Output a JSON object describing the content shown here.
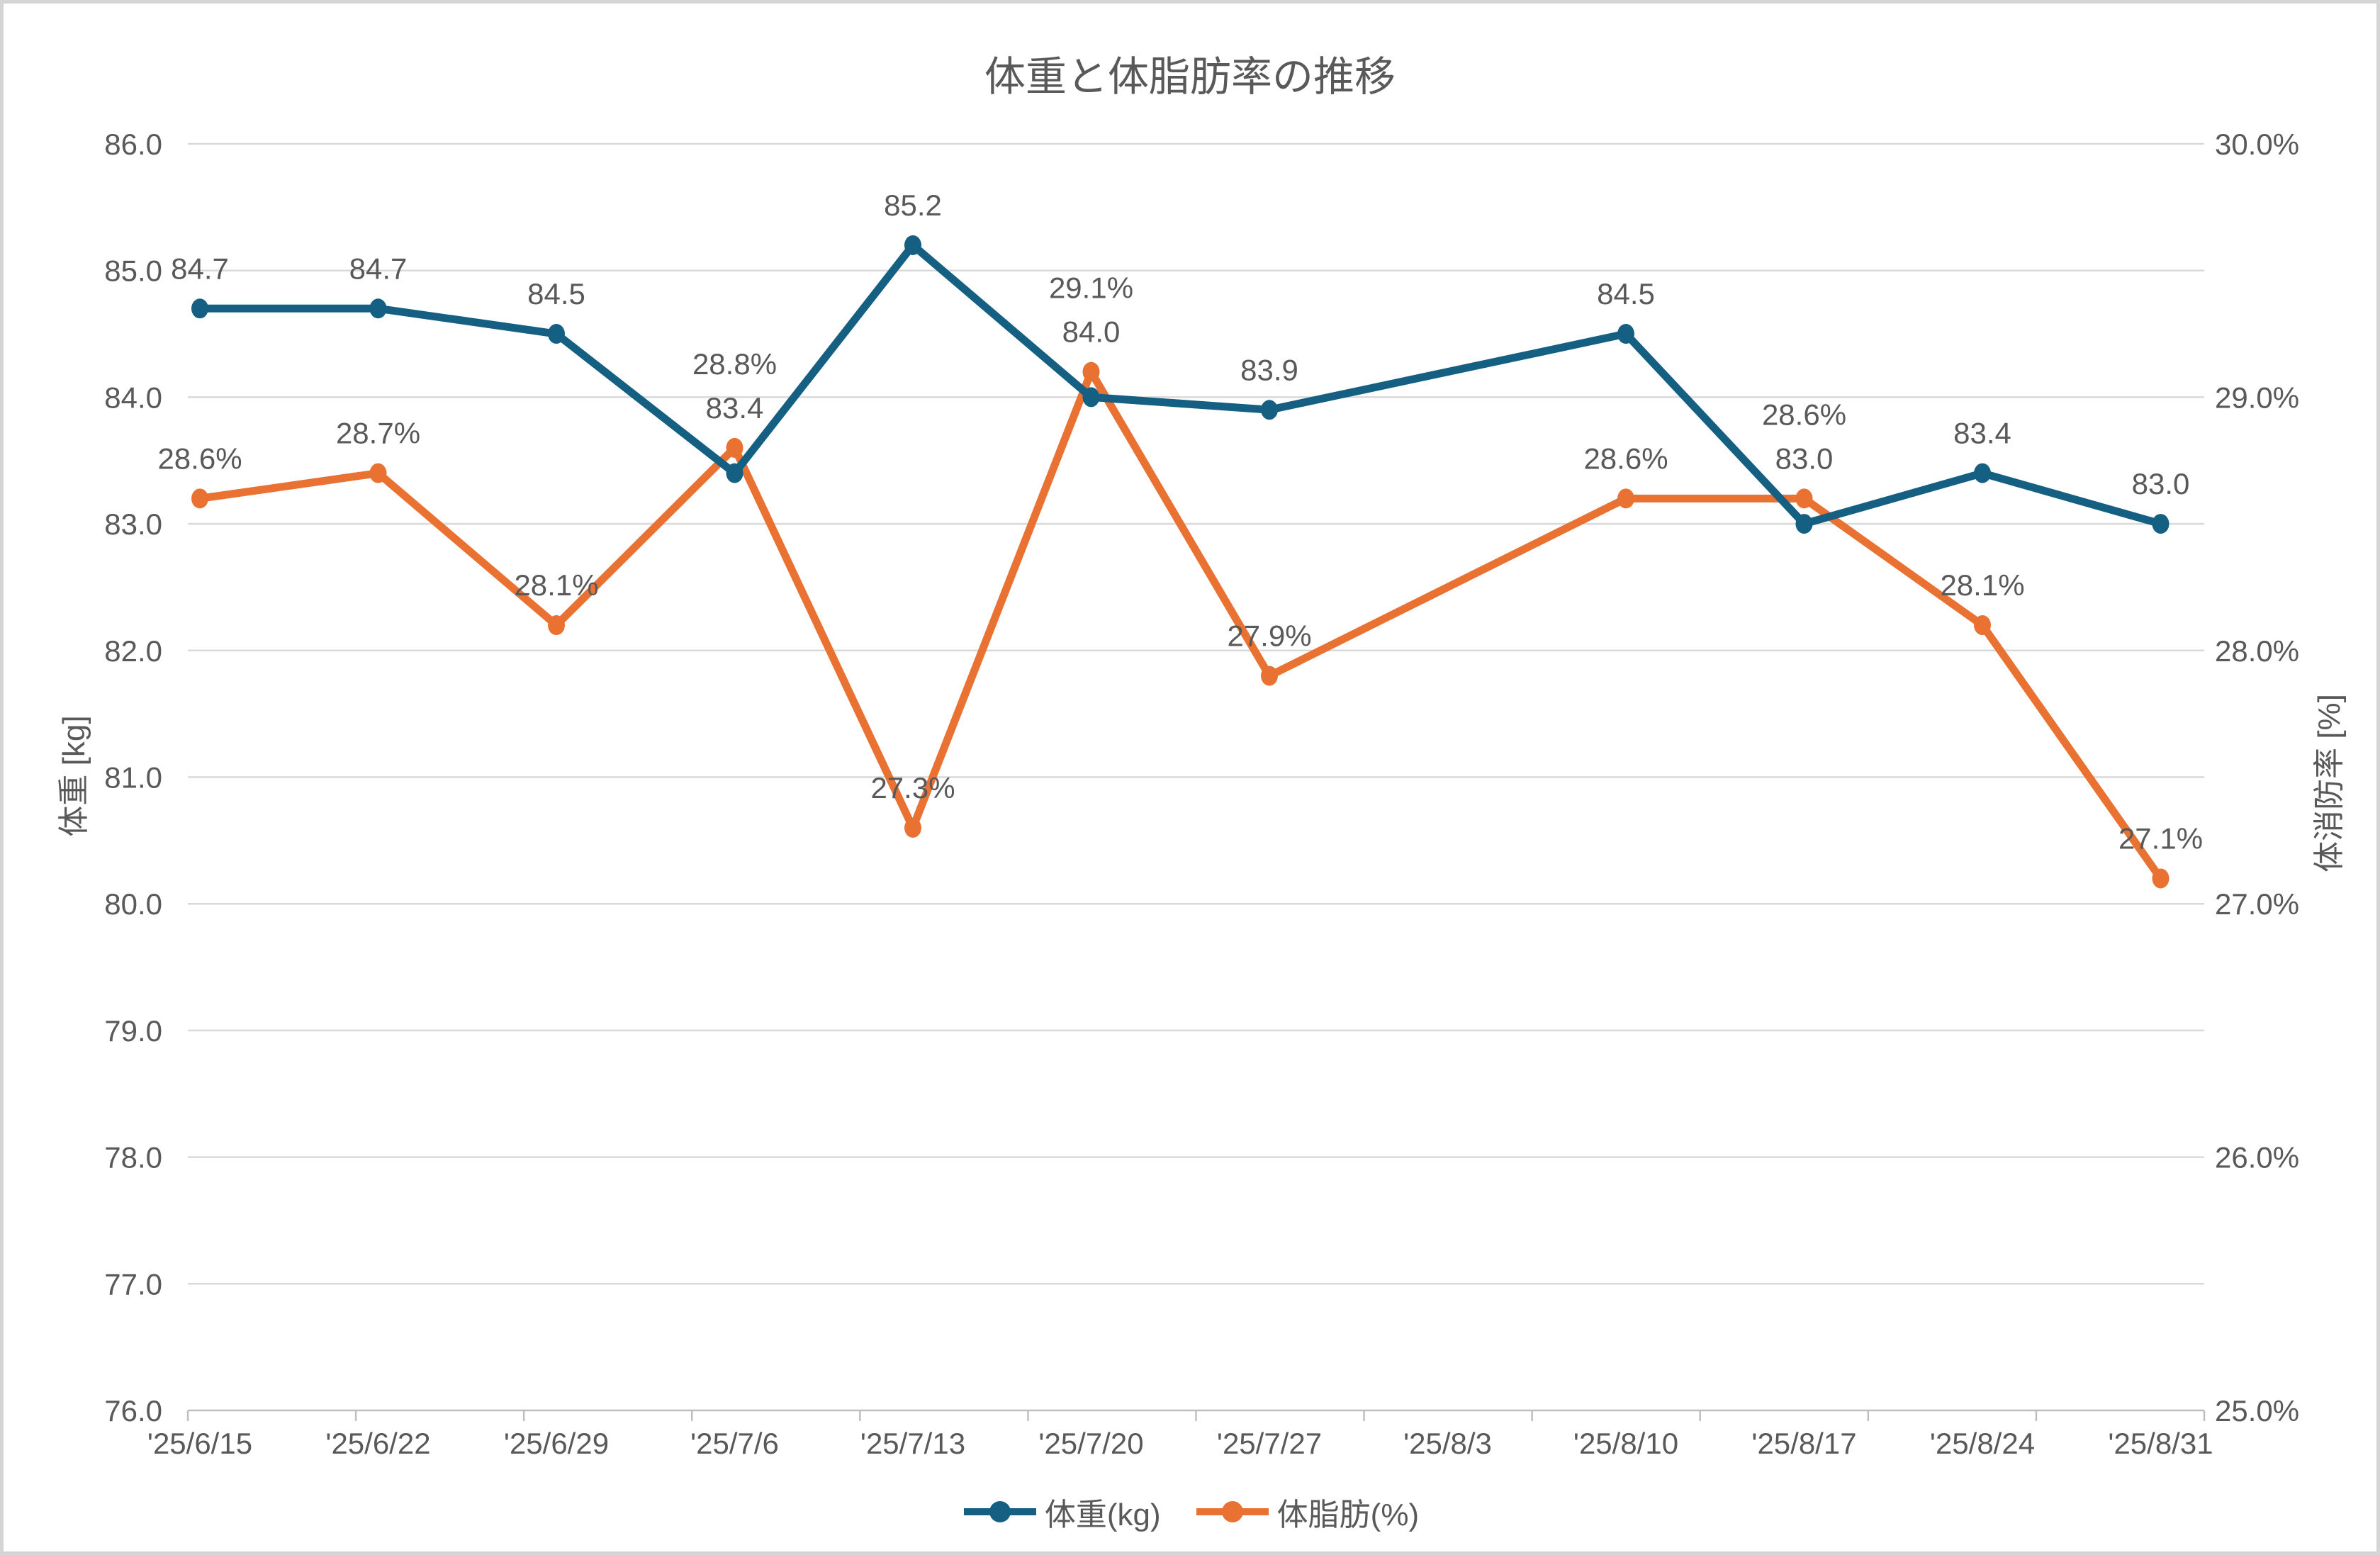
{
  "window": {
    "background": "#ffffff",
    "border_color": "#d5d5d5"
  },
  "chart_data": {
    "type": "line",
    "title": "体重と体脂肪率の推移",
    "categories": [
      "'25/6/15",
      "'25/6/22",
      "'25/6/29",
      "'25/7/6",
      "'25/7/13",
      "'25/7/20",
      "'25/7/27",
      "'25/8/3",
      "'25/8/10",
      "'25/8/17",
      "'25/8/24",
      "'25/8/31"
    ],
    "series": [
      {
        "name": "体重(kg)",
        "axis": "left",
        "color": "#156082",
        "values": [
          84.7,
          84.7,
          84.5,
          83.4,
          85.2,
          84.0,
          83.9,
          null,
          84.5,
          83.0,
          83.4,
          83.0
        ],
        "point_labels": [
          "84.7",
          "84.7",
          "84.5",
          "83.4",
          "85.2",
          "84.0",
          "83.9",
          "",
          "84.5",
          "83.0",
          "83.4",
          "83.0"
        ]
      },
      {
        "name": "体脂肪(%)",
        "axis": "right",
        "color": "#E97132",
        "values": [
          28.6,
          28.7,
          28.1,
          28.8,
          27.3,
          29.1,
          27.9,
          null,
          28.6,
          28.6,
          28.1,
          27.1
        ],
        "point_labels": [
          "28.6%",
          "28.7%",
          "28.1%",
          "28.8%",
          "27.3%",
          "29.1%",
          "27.9%",
          "",
          "28.6%",
          "28.6%",
          "28.1%",
          "27.1%"
        ]
      }
    ],
    "left_axis": {
      "title": "体重 [kg]",
      "min": 76.0,
      "max": 86.0,
      "step": 1.0,
      "tick_labels": [
        "86.0",
        "85.0",
        "84.0",
        "83.0",
        "82.0",
        "81.0",
        "80.0",
        "79.0",
        "78.0",
        "77.0",
        "76.0"
      ]
    },
    "right_axis": {
      "title": "体消防率 [%]",
      "min": 25.0,
      "max": 30.0,
      "step": 1.0,
      "tick_labels": [
        "30.0%",
        "29.0%",
        "28.0%",
        "27.0%",
        "26.0%",
        "25.0%"
      ]
    },
    "legend": {
      "position": "bottom",
      "entries": [
        "体重(kg)",
        "体脂肪(%)"
      ]
    },
    "layout": {
      "grid": "on",
      "gap_category": "'25/8/3"
    },
    "colors": {
      "grid": "#D9D9D9",
      "axis_line": "#BFBFBF",
      "text": "#595959"
    }
  }
}
